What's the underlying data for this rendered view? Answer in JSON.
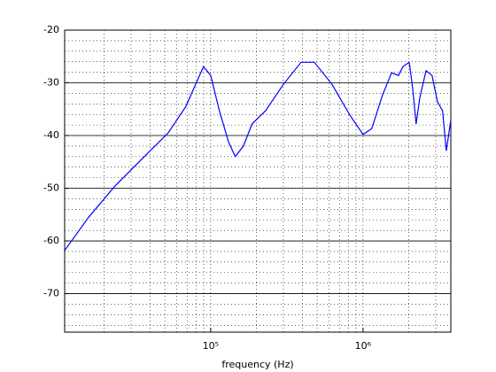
{
  "chart_data": {
    "type": "line",
    "x_label": "frequency (Hz)",
    "x_scale": "log",
    "grid": true,
    "xlim": [
      11000,
      3770000
    ],
    "xticks": [
      {
        "value": 100000,
        "label": "10⁵"
      },
      {
        "value": 1000000,
        "label": "10⁶"
      }
    ],
    "ylim": [
      -77.3,
      -20
    ],
    "yticks": [
      -70,
      -60,
      -50,
      -40,
      -30,
      -20
    ],
    "series": [
      {
        "color": "#0000ff",
        "x": [
          11000,
          15800,
          23500,
          35200,
          52600,
          68700,
          80700,
          89800,
          100000,
          114000,
          131000,
          145000,
          164000,
          187000,
          229000,
          300000,
          392000,
          479000,
          626000,
          818000,
          1000000,
          1140000,
          1340000,
          1540000,
          1710000,
          1830000,
          2010000,
          2120000,
          2230000,
          2360000,
          2590000,
          2840000,
          3080000,
          3330000,
          3520000,
          3770000
        ],
        "values": [
          -61.8,
          -55.5,
          -49.6,
          -44.5,
          -39.5,
          -34.5,
          -29.9,
          -26.9,
          -28.6,
          -35.3,
          -41.2,
          -44.0,
          -42.0,
          -37.8,
          -35.3,
          -30.3,
          -26.1,
          -26.1,
          -30.3,
          -36.1,
          -39.8,
          -38.7,
          -32.4,
          -28.1,
          -28.6,
          -26.9,
          -26.1,
          -31.1,
          -37.8,
          -32.8,
          -27.7,
          -28.6,
          -33.6,
          -35.3,
          -42.9,
          -37.0
        ]
      }
    ]
  }
}
